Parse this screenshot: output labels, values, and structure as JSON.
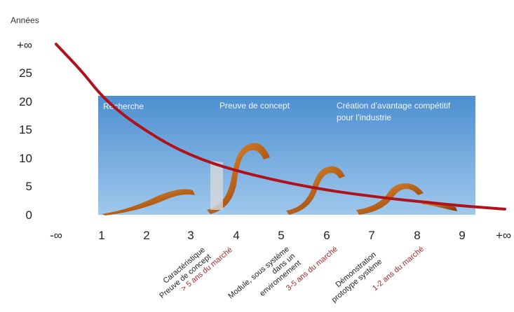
{
  "chart_data": {
    "type": "line",
    "ylabel": "Années",
    "y_ticks": [
      "0",
      "5",
      "10",
      "15",
      "20",
      "25",
      "+∞"
    ],
    "x_ticks": [
      "-∞",
      "1",
      "2",
      "3",
      "4",
      "5",
      "6",
      "7",
      "8",
      "9",
      "+∞"
    ],
    "series": [
      {
        "color": "#b0121b",
        "x": [
          0.0,
          0.6,
          1.0,
          1.5,
          2.0,
          2.5,
          3.0,
          3.5,
          4.0,
          4.5,
          5.0,
          5.5,
          6.0,
          6.5,
          7.0,
          7.5,
          8.0,
          8.5,
          9.0,
          9.5,
          10.0
        ],
        "y": [
          30.0,
          25.0,
          21.0,
          17.5,
          14.8,
          12.4,
          10.5,
          9.0,
          7.8,
          6.8,
          5.9,
          5.1,
          4.4,
          3.8,
          3.3,
          2.8,
          2.4,
          2.0,
          1.6,
          1.3,
          1.0
        ]
      }
    ],
    "ylim": [
      0,
      30
    ],
    "xlim": [
      0,
      10
    ],
    "grid": false,
    "band": {
      "labels": [
        "Recherche",
        "Preuve de concept",
        "Création d’avantage compétitif",
        "pour l’industrie"
      ],
      "color_top": "#4d8fd1",
      "color_bottom": "#9fc8ec"
    },
    "phase_labels": [
      {
        "lines": [
          "Caractéristique",
          "Preuve de concept"
        ],
        "color": "#222222"
      },
      {
        "lines": [
          "> 5 ans du marché"
        ],
        "color": "#a0282a"
      },
      {
        "lines": [
          "Module, sous système",
          "dans un",
          "environnement"
        ],
        "color": "#222222"
      },
      {
        "lines": [
          "3-5 ans du marché"
        ],
        "color": "#a0282a"
      },
      {
        "lines": [
          "Démonstration",
          "prototype système"
        ],
        "color": "#222222"
      },
      {
        "lines": [
          "1-2 ans du marché"
        ],
        "color": "#a0282a"
      }
    ]
  }
}
